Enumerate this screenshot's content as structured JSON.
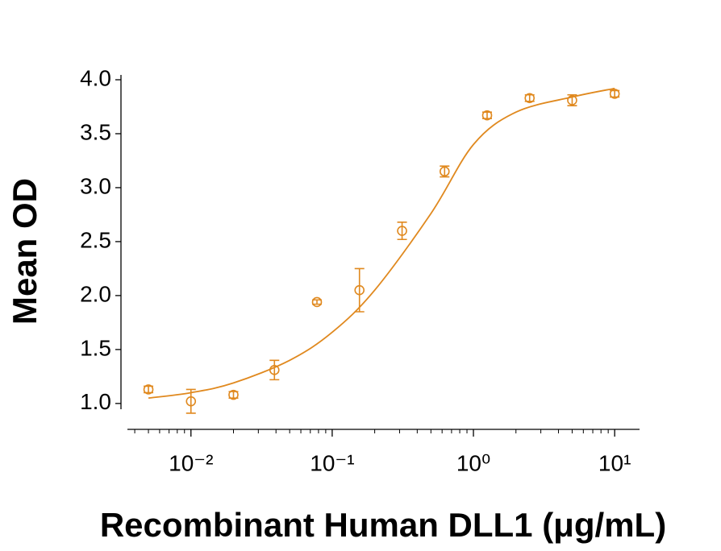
{
  "chart_data": {
    "type": "scatter",
    "x_label": "Recombinant Human DLL1 (μg/mL)",
    "y_label": "Mean OD",
    "x": [
      0.005,
      0.01,
      0.02,
      0.039,
      0.078,
      0.156,
      0.3125,
      0.625,
      1.25,
      2.5,
      5,
      10
    ],
    "values": [
      1.13,
      1.02,
      1.08,
      1.31,
      1.94,
      2.05,
      2.6,
      3.15,
      3.67,
      3.83,
      3.81,
      3.87
    ],
    "errors": [
      0.03,
      0.11,
      0.03,
      0.09,
      0.02,
      0.2,
      0.08,
      0.05,
      0.03,
      0.03,
      0.05,
      0.03
    ],
    "fit": {
      "x": [
        0.005,
        0.01,
        0.02,
        0.05,
        0.1,
        0.2,
        0.5,
        1,
        2,
        5,
        10
      ],
      "y": [
        1.05,
        1.1,
        1.19,
        1.4,
        1.66,
        2.05,
        2.76,
        3.4,
        3.7,
        3.84,
        3.92
      ]
    },
    "color": "#e0891f",
    "x_log": true,
    "minor_ticks": true,
    "xlim": [
      0.00355,
      15
    ],
    "ylim": [
      0.76,
      4.0
    ],
    "xticks": [
      {
        "value": 0.01,
        "label": "10⁻²"
      },
      {
        "value": 0.1,
        "label": "10⁻¹"
      },
      {
        "value": 1,
        "label": "10⁰"
      },
      {
        "value": 10,
        "label": "10¹"
      }
    ],
    "yticks": [
      {
        "value": 1,
        "label": "1.0"
      },
      {
        "value": 1.5,
        "label": "1.5"
      },
      {
        "value": 2,
        "label": "2.0"
      },
      {
        "value": 2.5,
        "label": "2.5"
      },
      {
        "value": 3,
        "label": "3.0"
      },
      {
        "value": 3.5,
        "label": "3.5"
      },
      {
        "value": 4,
        "label": "4.0"
      }
    ]
  }
}
